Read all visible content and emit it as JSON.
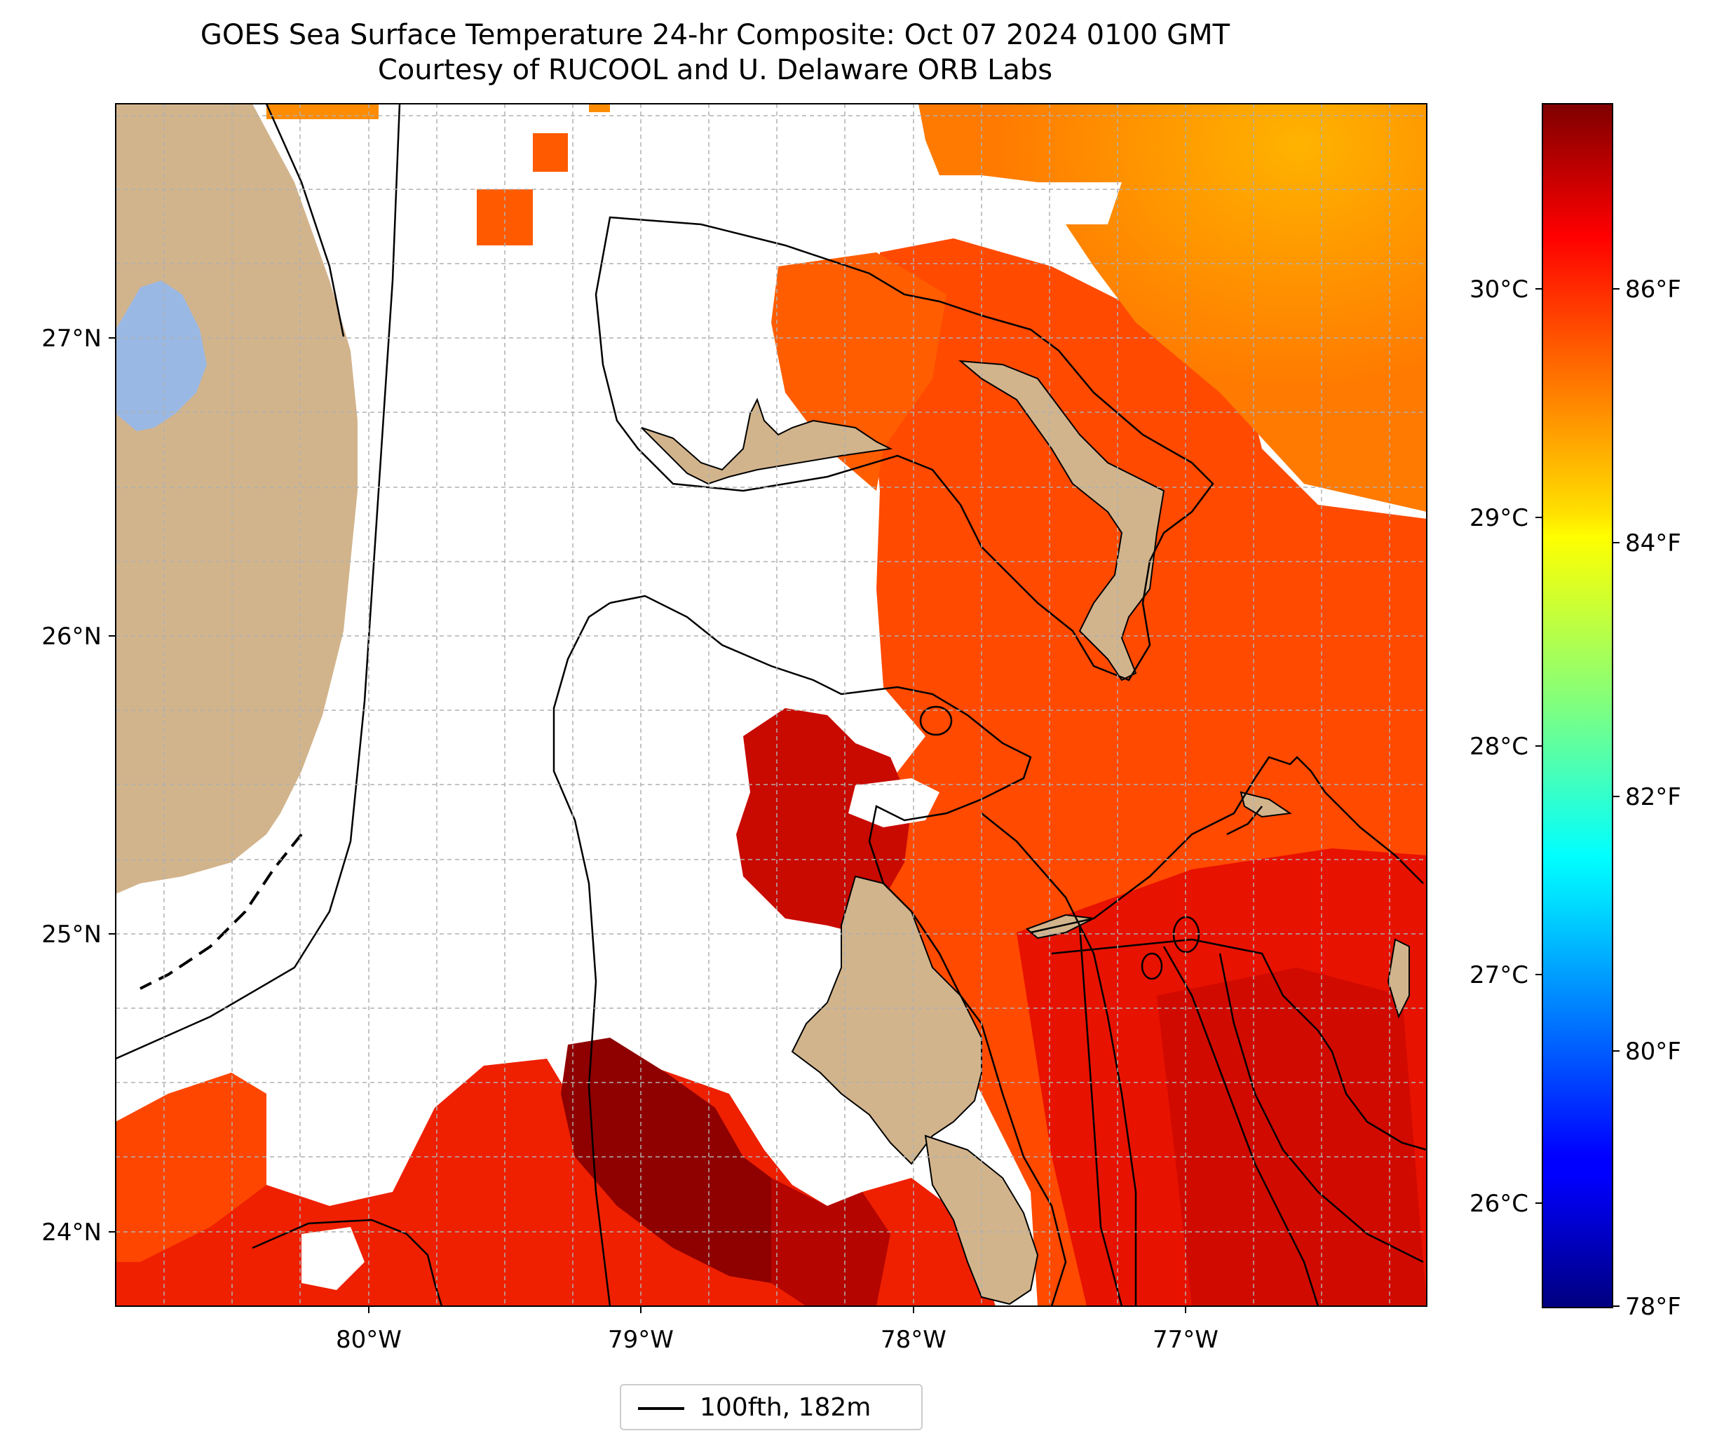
{
  "title": "GOES Sea Surface Temperature 24-hr Composite: Oct 07 2024 0100 GMT",
  "subtitle": "Courtesy of RUCOOL and U. Delaware ORB Labs",
  "map": {
    "lat_labels": [
      "27°N",
      "26°N",
      "25°N",
      "24°N"
    ],
    "lon_labels": [
      "80°W",
      "79°W",
      "78°W",
      "77°W"
    ],
    "lat_range": [
      23.74,
      27.8
    ],
    "lon_range": [
      -80.95,
      -76.1
    ],
    "gridlines": true,
    "colors": {
      "land": "#d2b48c",
      "lake": "#9ab8e4",
      "cloud_gap": "#ffffff"
    }
  },
  "colorbar": {
    "colormap": "jet",
    "celsius_labels": [
      "30°C",
      "29°C",
      "28°C",
      "27°C",
      "26°C"
    ],
    "fahrenheit_labels": [
      "86°F",
      "84°F",
      "82°F",
      "80°F",
      "78°F"
    ]
  },
  "legend": {
    "label": "100fth, 182m"
  }
}
